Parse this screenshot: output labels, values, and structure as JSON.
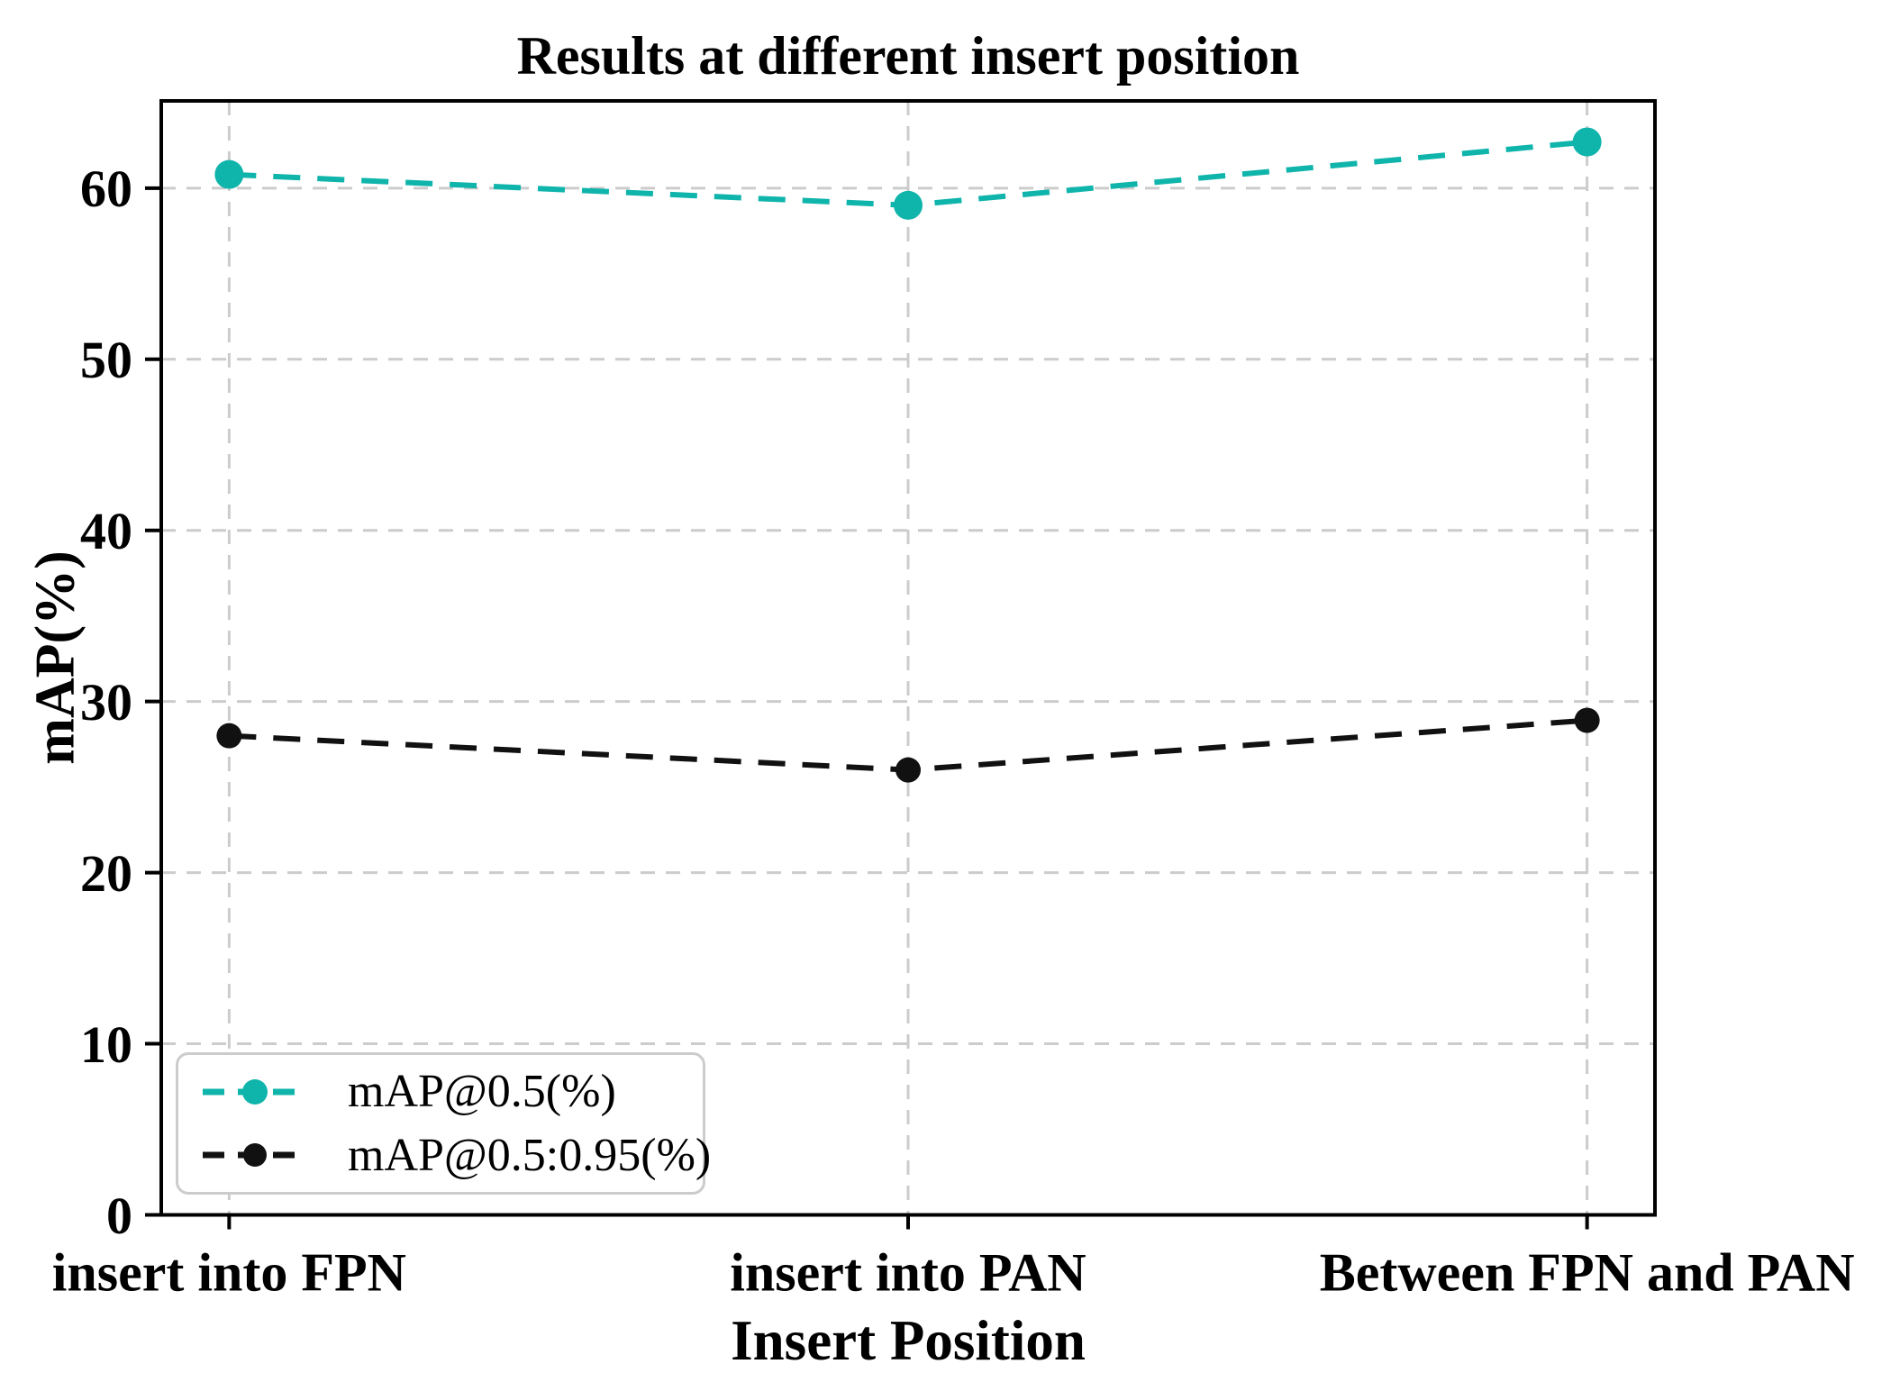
{
  "chart_data": {
    "type": "line",
    "title": "Results at different insert position",
    "xlabel": "Insert Position",
    "ylabel": "mAP(%)",
    "categories": [
      "insert into FPN",
      "insert into PAN",
      "Between FPN and PAN"
    ],
    "series": [
      {
        "name": "mAP@0.5(%)",
        "color": "#0fb4ab",
        "values": [
          60.8,
          59.0,
          62.7
        ]
      },
      {
        "name": "mAP@0.5:0.95(%)",
        "color": "#111111",
        "values": [
          28.0,
          26.0,
          28.9
        ]
      }
    ],
    "yticks": [
      0,
      10,
      20,
      30,
      40,
      50,
      60
    ],
    "ylim": [
      0,
      65.1
    ],
    "grid": true,
    "grid_color": "#cccccc",
    "axis_color": "#000000",
    "line_style": "dashed",
    "marker": "circle",
    "legend_position": "lower left"
  }
}
